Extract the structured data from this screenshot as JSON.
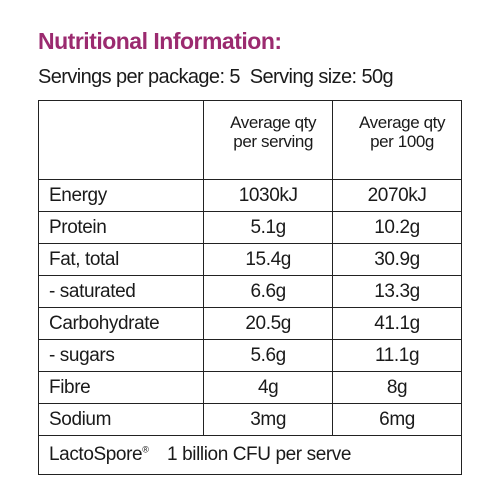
{
  "title": "Nutritional Information:",
  "subtitle": "Servings per package: 5  Serving size: 50g",
  "table": {
    "header": [
      [
        "Average qty",
        "per serving"
      ],
      [
        "Average qty",
        "per 100g"
      ]
    ],
    "rows": [
      [
        "Energy",
        "1030kJ",
        "2070kJ"
      ],
      [
        "Protein",
        "5.1g",
        "10.2g"
      ],
      [
        "Fat, total",
        "15.4g",
        "30.9g"
      ],
      [
        "- saturated",
        "6.6g",
        "13.3g"
      ],
      [
        "Carbohydrate",
        "20.5g",
        "41.1g"
      ],
      [
        "- sugars",
        "5.6g",
        "11.1g"
      ],
      [
        "Fibre",
        "4g",
        "8g"
      ],
      [
        "Sodium",
        "3mg",
        "6mg"
      ]
    ],
    "footer": {
      "name": "LactoSpore",
      "mark": "®",
      "text": "1 billion CFU per serve"
    }
  }
}
